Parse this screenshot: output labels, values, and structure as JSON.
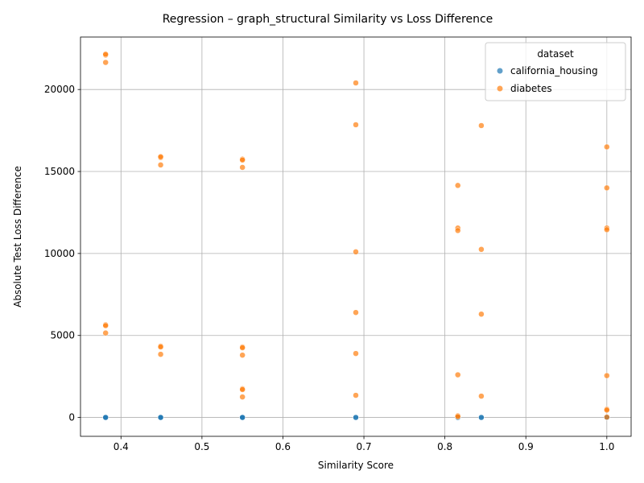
{
  "chart_data": {
    "type": "scatter",
    "title": "Regression – graph_structural Similarity vs Loss Difference",
    "xlabel": "Similarity Score",
    "ylabel": "Absolute Test Loss Difference",
    "xlim": [
      0.35,
      1.03
    ],
    "ylim": [
      -1150,
      23200
    ],
    "xticks": [
      0.4,
      0.5,
      0.6,
      0.7,
      0.8,
      0.9,
      1.0
    ],
    "xtick_labels": [
      "0.4",
      "0.5",
      "0.6",
      "0.7",
      "0.8",
      "0.9",
      "1.0"
    ],
    "yticks": [
      0,
      5000,
      10000,
      15000,
      20000
    ],
    "ytick_labels": [
      "0",
      "5000",
      "10000",
      "15000",
      "20000"
    ],
    "grid": true,
    "legend": {
      "title": "dataset",
      "placement": "top-right"
    },
    "series": [
      {
        "name": "california_housing",
        "color": "#1f77b4",
        "points": [
          [
            0.381,
            0
          ],
          [
            0.381,
            0
          ],
          [
            0.381,
            0
          ],
          [
            0.449,
            0
          ],
          [
            0.449,
            0
          ],
          [
            0.449,
            0
          ],
          [
            0.55,
            0
          ],
          [
            0.55,
            0
          ],
          [
            0.55,
            0
          ],
          [
            0.69,
            0
          ],
          [
            0.69,
            0
          ],
          [
            0.816,
            0
          ],
          [
            0.816,
            0
          ],
          [
            0.845,
            0
          ],
          [
            0.845,
            0
          ],
          [
            1.0,
            0
          ],
          [
            1.0,
            0
          ]
        ]
      },
      {
        "name": "diabetes",
        "color": "#ff7f0e",
        "points": [
          [
            0.381,
            22100
          ],
          [
            0.381,
            22150
          ],
          [
            0.381,
            21650
          ],
          [
            0.381,
            5650
          ],
          [
            0.381,
            5600
          ],
          [
            0.381,
            5150
          ],
          [
            0.449,
            15850
          ],
          [
            0.449,
            15900
          ],
          [
            0.449,
            15400
          ],
          [
            0.449,
            4350
          ],
          [
            0.449,
            4300
          ],
          [
            0.449,
            3850
          ],
          [
            0.55,
            15750
          ],
          [
            0.55,
            15700
          ],
          [
            0.55,
            15250
          ],
          [
            0.55,
            4300
          ],
          [
            0.55,
            4250
          ],
          [
            0.55,
            3800
          ],
          [
            0.55,
            1750
          ],
          [
            0.55,
            1700
          ],
          [
            0.55,
            1250
          ],
          [
            0.69,
            20400
          ],
          [
            0.69,
            17850
          ],
          [
            0.69,
            10100
          ],
          [
            0.69,
            6400
          ],
          [
            0.69,
            3900
          ],
          [
            0.69,
            1350
          ],
          [
            0.816,
            14150
          ],
          [
            0.816,
            11550
          ],
          [
            0.816,
            11400
          ],
          [
            0.816,
            2600
          ],
          [
            0.816,
            100
          ],
          [
            0.816,
            50
          ],
          [
            0.845,
            17800
          ],
          [
            0.845,
            10250
          ],
          [
            0.845,
            6300
          ],
          [
            0.845,
            1300
          ],
          [
            1.0,
            16500
          ],
          [
            1.0,
            14000
          ],
          [
            1.0,
            11550
          ],
          [
            1.0,
            11450
          ],
          [
            1.0,
            2550
          ],
          [
            1.0,
            500
          ],
          [
            1.0,
            450
          ],
          [
            1.0,
            20
          ]
        ]
      }
    ]
  }
}
